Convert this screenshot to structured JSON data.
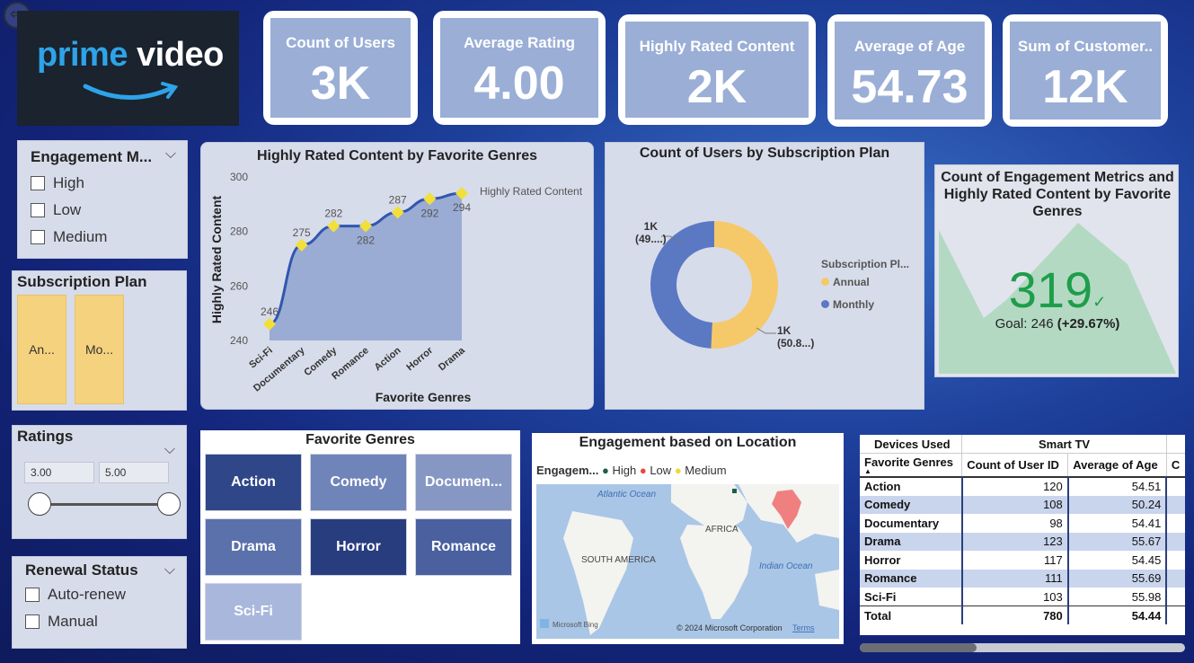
{
  "logo": {
    "word1": "prime",
    "word2": "video"
  },
  "kpis": [
    {
      "title": "Count of Users",
      "value": "3K"
    },
    {
      "title": "Average Rating",
      "value": "4.00"
    },
    {
      "title": "Highly Rated Content",
      "value": "2K"
    },
    {
      "title": "Average of Age",
      "value": "54.73"
    },
    {
      "title": "Sum of Customer..",
      "value": "12K"
    }
  ],
  "engagement_slicer": {
    "title": "Engagement M...",
    "options": [
      "High",
      "Low",
      "Medium"
    ]
  },
  "subscription_slicer": {
    "title": "Subscription Plan",
    "tiles": [
      "An...",
      "Mo..."
    ]
  },
  "ratings_slicer": {
    "title": "Ratings",
    "min": "3.00",
    "max": "5.00"
  },
  "renewal_slicer": {
    "title": "Renewal Status",
    "options": [
      "Auto-renew",
      "Manual"
    ]
  },
  "line_chart": {
    "title": "Highly Rated Content by Favorite Genres",
    "xlabel": "Favorite Genres",
    "ylabel": "Highly Rated Content",
    "legend": "Highly Rated Content",
    "ylim": [
      240,
      300
    ],
    "yticks": [
      "300",
      "280",
      "260",
      "240"
    ],
    "categories": [
      "Sci-Fi",
      "Documentary",
      "Comedy",
      "Romance",
      "Action",
      "Horror",
      "Drama"
    ],
    "values": [
      246,
      275,
      282,
      282,
      287,
      292,
      294
    ],
    "labels": [
      "246",
      "275",
      "282",
      "282",
      "287",
      "292",
      "294"
    ]
  },
  "donut_chart": {
    "title": "Count of Users by Subscription Plan",
    "legend_title": "Subscription Pl...",
    "series": [
      {
        "name": "Annual",
        "color": "#f5c96a",
        "value_label": "1K",
        "pct_label": "(50.8...)",
        "pct": 50.8
      },
      {
        "name": "Monthly",
        "color": "#5b78c3",
        "value_label": "1K",
        "pct_label": "(49....)",
        "pct": 49.2
      }
    ]
  },
  "kpi_card": {
    "title": "Count of Engagement Metrics and Highly Rated Content by Favorite Genres",
    "value": "319",
    "check": "✓",
    "goal_label": "Goal: 246",
    "goal_delta": "(+29.67%)"
  },
  "genre_slicer": {
    "title": "Favorite Genres",
    "buttons": [
      {
        "label": "Action",
        "color": "#2f4789"
      },
      {
        "label": "Comedy",
        "color": "#6f84b9"
      },
      {
        "label": "Documen...",
        "color": "#8697c4"
      },
      {
        "label": "Drama",
        "color": "#5b71ab"
      },
      {
        "label": "Horror",
        "color": "#283d7e"
      },
      {
        "label": "Romance",
        "color": "#4a609f"
      },
      {
        "label": "Sci-Fi",
        "color": "#a9b7dc"
      }
    ]
  },
  "map": {
    "title": "Engagement based on Location",
    "legend_title": "Engagem...",
    "legend": [
      {
        "name": "High",
        "color": "#1f5e46"
      },
      {
        "name": "Low",
        "color": "#e84b3c"
      },
      {
        "name": "Medium",
        "color": "#f0d83a"
      }
    ],
    "labels": {
      "atlantic": "Atlantic Ocean",
      "africa": "AFRICA",
      "south_america": "SOUTH AMERICA",
      "indian": "Indian Ocean"
    },
    "attribution": "Microsoft Bing",
    "copyright": "© 2024 Microsoft Corporation",
    "terms": "Terms"
  },
  "matrix": {
    "devices_label": "Devices Used",
    "device": "Smart TV",
    "headers": [
      "Favorite Genres",
      "Count of User ID",
      "Average of Age",
      "C"
    ],
    "rows": [
      [
        "Action",
        "120",
        "54.51"
      ],
      [
        "Comedy",
        "108",
        "50.24"
      ],
      [
        "Documentary",
        "98",
        "54.41"
      ],
      [
        "Drama",
        "123",
        "55.67"
      ],
      [
        "Horror",
        "117",
        "54.45"
      ],
      [
        "Romance",
        "111",
        "55.69"
      ],
      [
        "Sci-Fi",
        "103",
        "55.98"
      ]
    ],
    "total": [
      "Total",
      "780",
      "54.44"
    ]
  }
}
